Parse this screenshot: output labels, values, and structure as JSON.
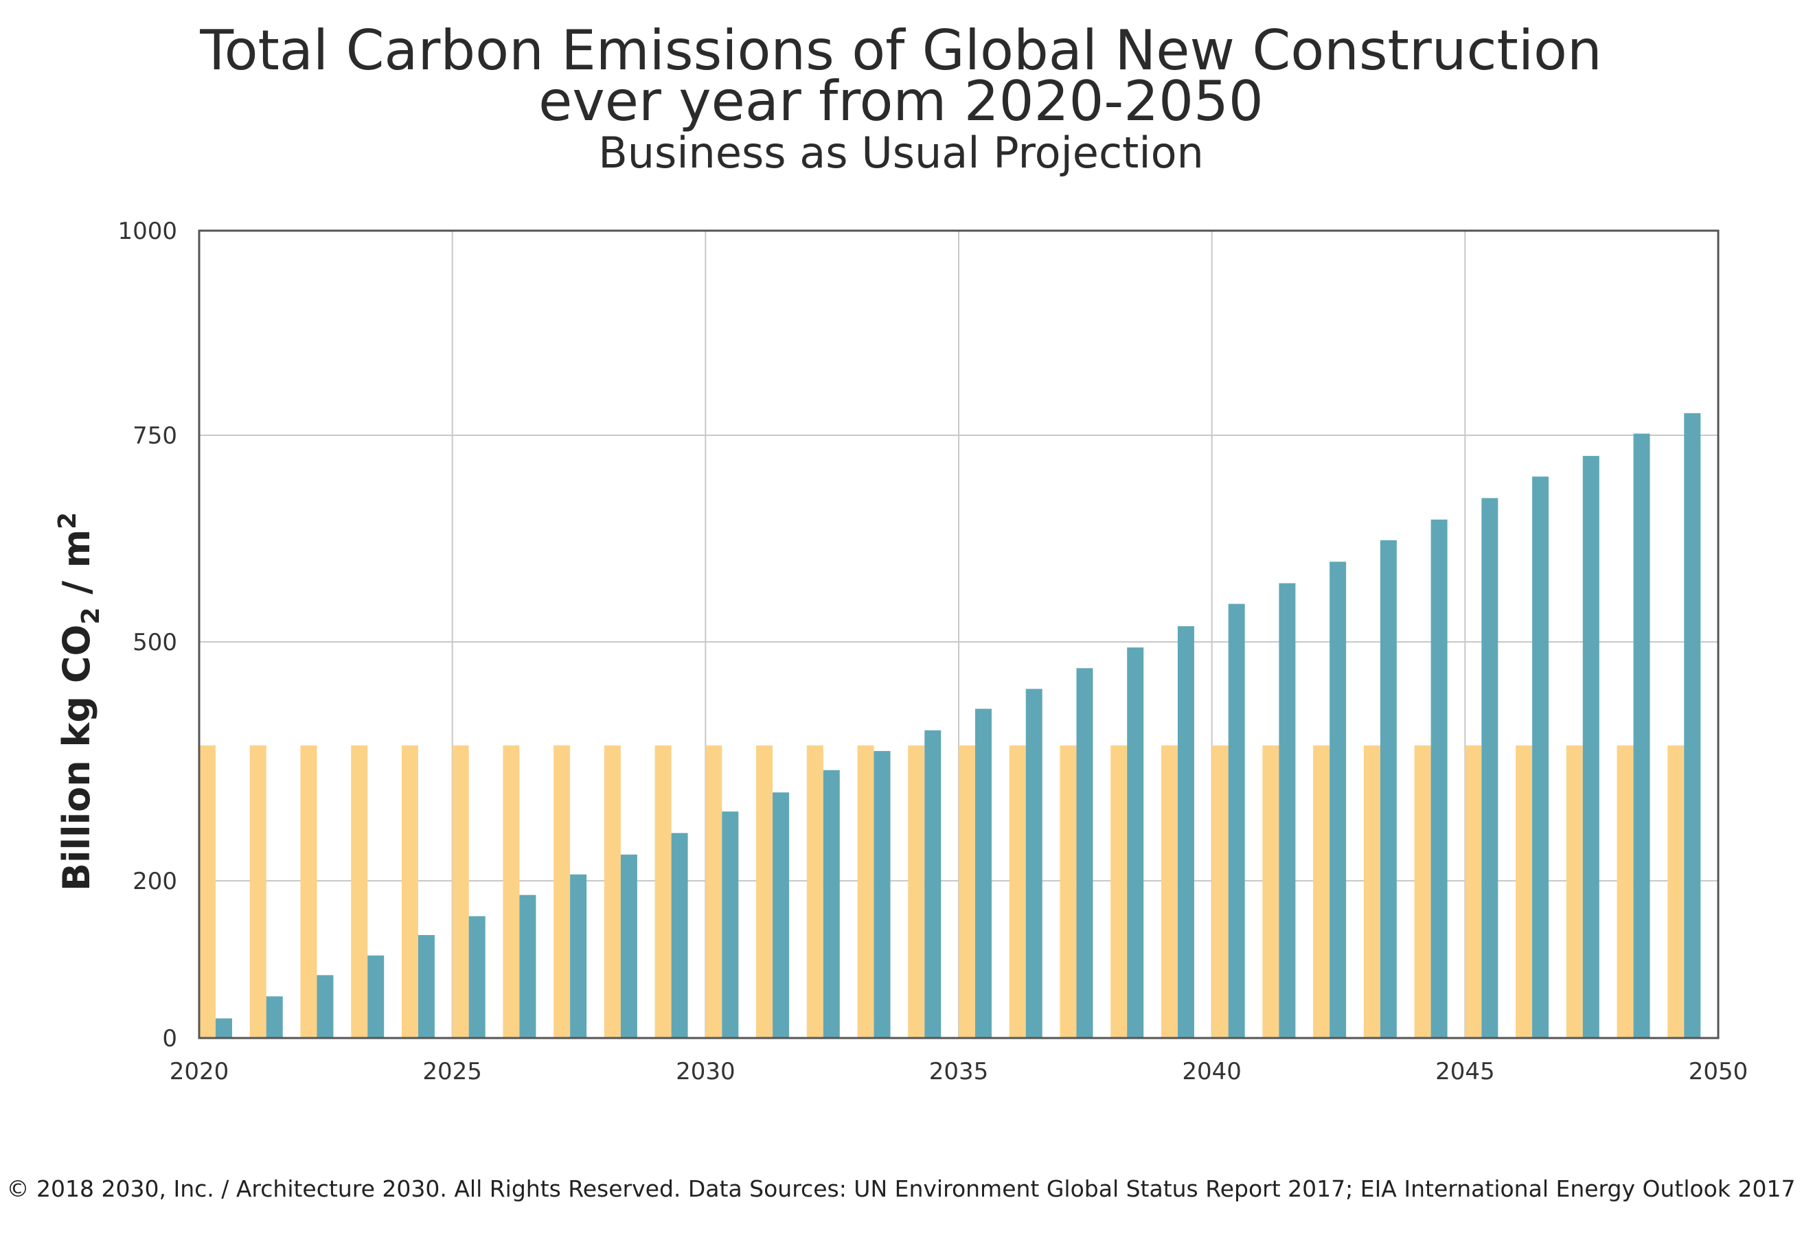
{
  "chart_data": {
    "type": "bar",
    "title": "Total Carbon Emissions of Global New Construction",
    "title_line2": "ever year from 2020-2050",
    "subtitle": "Business as Usual Projection",
    "ylabel_main": "Billion kg CO",
    "ylabel_sub": "2",
    "ylabel_tail": " / m",
    "ylabel_sup": "2",
    "xlabel": "",
    "x_ticks": [
      "2020",
      "2025",
      "2030",
      "2035",
      "2040",
      "2045",
      "2050"
    ],
    "x_tick_values": [
      2020,
      2025,
      2030,
      2035,
      2040,
      2045,
      2050
    ],
    "xlim": [
      2020,
      2050
    ],
    "y_ticks": [
      "0",
      "200",
      "500",
      "750",
      "1000"
    ],
    "y_tick_values": [
      0,
      200,
      500,
      750,
      1000
    ],
    "ylim": [
      0,
      1000
    ],
    "grid": true,
    "colors": {
      "series_a": "#FCD287",
      "series_b": "#5FA7B7",
      "grid": "#C8C8C8",
      "frame": "#555555"
    },
    "x": [
      2020,
      2021,
      2022,
      2023,
      2024,
      2025,
      2026,
      2027,
      2028,
      2029,
      2030,
      2031,
      2032,
      2033,
      2034,
      2035,
      2036,
      2037,
      2038,
      2039,
      2040,
      2041,
      2042,
      2043,
      2044,
      2045,
      2046,
      2047,
      2048,
      2049
    ],
    "series": [
      {
        "color_key": "series_a",
        "values": [
          370,
          370,
          370,
          370,
          370,
          370,
          370,
          370,
          370,
          370,
          370,
          370,
          370,
          370,
          370,
          370,
          370,
          370,
          370,
          370,
          370,
          370,
          370,
          370,
          370,
          370,
          370,
          370,
          370,
          370
        ]
      },
      {
        "color_key": "series_b",
        "values": [
          25,
          53,
          80,
          105,
          131,
          155,
          182,
          208,
          233,
          260,
          287,
          311,
          339,
          363,
          389,
          416,
          441,
          467,
          493,
          519,
          546,
          571,
          597,
          623,
          648,
          674,
          700,
          725,
          752,
          777
        ]
      }
    ]
  },
  "footer": "© 2018 2030, Inc. / Architecture 2030. All Rights Reserved. Data Sources: UN Environment Global Status Report 2017; EIA International Energy Outlook 2017"
}
